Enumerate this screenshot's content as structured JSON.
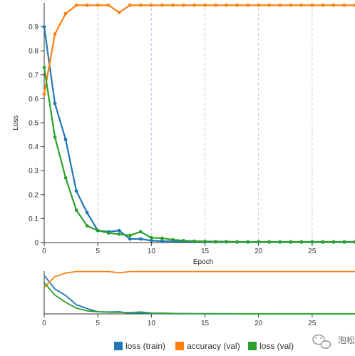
{
  "colors": {
    "loss_train": "#1f77b4",
    "accuracy_val": "#ff7f0e",
    "loss_val": "#2ca02c",
    "epoch_marker": "#c9bfe3",
    "axis": "#333333"
  },
  "legend": {
    "loss_train": "loss (train)",
    "accuracy_val": "accuracy (val)",
    "loss_val": "loss (val)"
  },
  "watermark": {
    "text": "泡松",
    "icon": "wechat-logo-icon"
  },
  "chart_data": [
    {
      "type": "line",
      "title": "",
      "xlabel": "Epoch",
      "ylabel": "Loss",
      "xlim": [
        0,
        29
      ],
      "ylim": [
        0,
        1
      ],
      "x_ticks": [
        "0",
        "5",
        "10",
        "15",
        "20",
        "25"
      ],
      "y_ticks": [
        "0",
        "0.1",
        "0.2",
        "0.3",
        "0.4",
        "0.5",
        "0.6",
        "0.7",
        "0.8",
        "0.9"
      ],
      "vertical_markers": [
        5,
        10,
        15,
        20,
        25
      ],
      "grid": false,
      "legend_position": "bottom-center",
      "x": [
        0,
        1,
        2,
        3,
        4,
        5,
        6,
        7,
        8,
        9,
        10,
        11,
        12,
        13,
        14,
        15,
        16,
        17,
        18,
        19,
        20,
        21,
        22,
        23,
        24,
        25,
        26,
        27,
        28,
        29
      ],
      "series": [
        {
          "name": "loss (train)",
          "values": [
            0.9,
            0.58,
            0.43,
            0.215,
            0.125,
            0.05,
            0.045,
            0.05,
            0.015,
            0.015,
            0.008,
            0.006,
            0.005,
            0.004,
            0.004,
            0.003,
            0.003,
            0.003,
            0.002,
            0.002,
            0.002,
            0.002,
            0.002,
            0.002,
            0.002,
            0.002,
            0.002,
            0.002,
            0.002,
            0.002
          ]
        },
        {
          "name": "accuracy (val)",
          "values": [
            0.62,
            0.87,
            0.955,
            0.99,
            0.99,
            0.99,
            0.99,
            0.96,
            0.99,
            0.99,
            0.99,
            0.99,
            0.99,
            0.99,
            0.99,
            0.99,
            0.99,
            0.99,
            0.99,
            0.99,
            0.99,
            0.99,
            0.99,
            0.99,
            0.99,
            0.99,
            0.99,
            0.99,
            0.99,
            0.99
          ]
        },
        {
          "name": "loss (val)",
          "values": [
            0.73,
            0.44,
            0.27,
            0.135,
            0.07,
            0.05,
            0.04,
            0.035,
            0.03,
            0.045,
            0.02,
            0.018,
            0.012,
            0.008,
            0.006,
            0.005,
            0.004,
            0.004,
            0.003,
            0.003,
            0.003,
            0.003,
            0.003,
            0.003,
            0.003,
            0.003,
            0.003,
            0.003,
            0.003,
            0.003
          ]
        }
      ]
    },
    {
      "type": "line",
      "title": "",
      "xlabel": "",
      "ylabel": "",
      "xlim": [
        0,
        29
      ],
      "ylim": [
        0,
        1
      ],
      "x_ticks": [
        "0",
        "5",
        "10",
        "15",
        "20",
        "25"
      ],
      "grid": false,
      "series_from_main_chart": true
    }
  ]
}
